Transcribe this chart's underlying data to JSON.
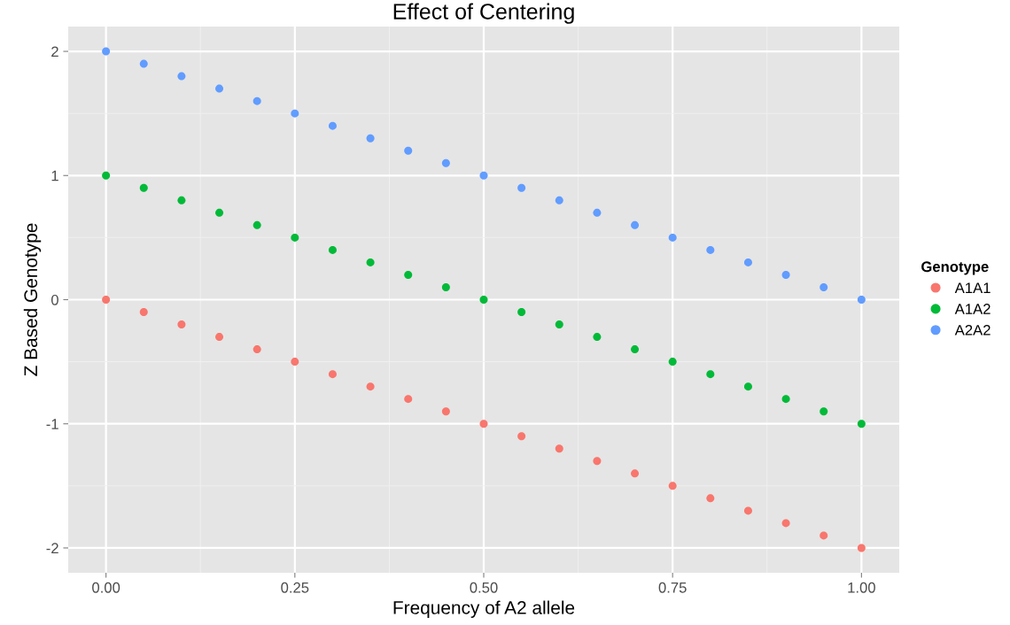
{
  "chart_data": {
    "type": "scatter",
    "title": "Effect of Centering",
    "xlabel": "Frequency of A2 allele",
    "ylabel": "Z Based Genotype",
    "legend_title": "Genotype",
    "x": [
      0,
      0.05,
      0.1,
      0.15,
      0.2,
      0.25,
      0.3,
      0.35,
      0.4,
      0.45,
      0.5,
      0.55,
      0.6,
      0.65,
      0.7,
      0.75,
      0.8,
      0.85,
      0.9,
      0.95,
      1
    ],
    "series": [
      {
        "name": "A1A1",
        "color": "#f8766d",
        "values": [
          0,
          -0.1,
          -0.2,
          -0.3,
          -0.4,
          -0.5,
          -0.6,
          -0.7,
          -0.8,
          -0.9,
          -1,
          -1.1,
          -1.2,
          -1.3,
          -1.4,
          -1.5,
          -1.6,
          -1.7,
          -1.8,
          -1.9,
          -2
        ]
      },
      {
        "name": "A1A2",
        "color": "#00ba38",
        "values": [
          1,
          0.9,
          0.8,
          0.7,
          0.6,
          0.5,
          0.4,
          0.3,
          0.2,
          0.1,
          0,
          -0.1,
          -0.2,
          -0.3,
          -0.4,
          -0.5,
          -0.6,
          -0.7,
          -0.8,
          -0.9,
          -1
        ]
      },
      {
        "name": "A2A2",
        "color": "#619cff",
        "values": [
          2,
          1.9,
          1.8,
          1.7,
          1.6,
          1.5,
          1.4,
          1.3,
          1.2,
          1.1,
          1,
          0.9,
          0.8,
          0.7,
          0.6,
          0.5,
          0.4,
          0.3,
          0.2,
          0.1,
          0
        ]
      }
    ],
    "xlim": [
      -0.05,
      1.05
    ],
    "ylim": [
      -2.2,
      2.2
    ],
    "xticks": [
      {
        "value": 0,
        "label": "0.00"
      },
      {
        "value": 0.25,
        "label": "0.25"
      },
      {
        "value": 0.5,
        "label": "0.50"
      },
      {
        "value": 0.75,
        "label": "0.75"
      },
      {
        "value": 1,
        "label": "1.00"
      }
    ],
    "yticks": [
      {
        "value": -2,
        "label": "-2"
      },
      {
        "value": -1,
        "label": "-1"
      },
      {
        "value": 0,
        "label": "0"
      },
      {
        "value": 1,
        "label": "1"
      },
      {
        "value": 2,
        "label": "2"
      }
    ],
    "grid": true,
    "legend": "right",
    "marker": "circle"
  }
}
